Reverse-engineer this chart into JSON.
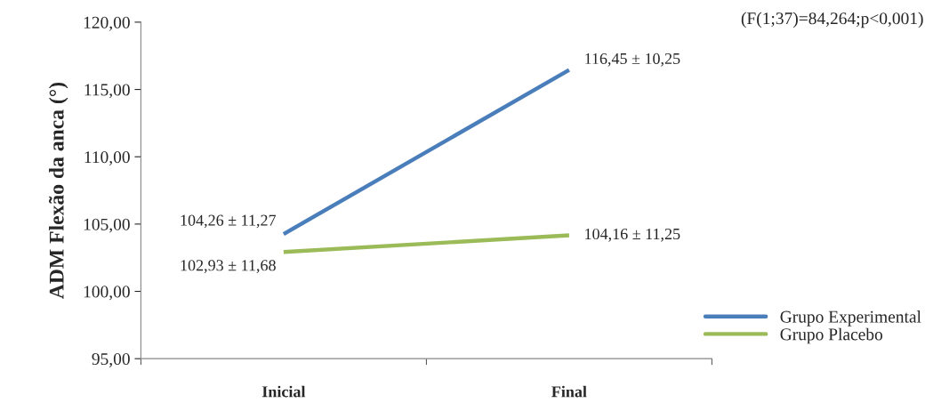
{
  "chart_data": {
    "type": "line",
    "ylabel": "ADM Flexão da anca (°)",
    "categories": [
      "Inicial",
      "Final"
    ],
    "series": [
      {
        "name": "Grupo Experimental",
        "color": "#4a7ebb",
        "values": [
          104.26,
          116.45
        ],
        "value_labels": [
          "104,26 ± 11,27",
          "116,45 ± 10,25"
        ]
      },
      {
        "name": "Grupo Placebo",
        "color": "#9bbb59",
        "values": [
          102.93,
          104.16
        ],
        "value_labels": [
          "102,93 ± 11,68",
          "104,16 ± 11,25"
        ]
      }
    ],
    "ylim": [
      95,
      120
    ],
    "yticks": [
      {
        "value": 95,
        "label": "95,00"
      },
      {
        "value": 100,
        "label": "100,00"
      },
      {
        "value": 105,
        "label": "105,00"
      },
      {
        "value": 110,
        "label": "110,00"
      },
      {
        "value": 115,
        "label": "115,00"
      },
      {
        "value": 120,
        "label": "120,00"
      }
    ],
    "annotations": [
      "(F(1;37)=84,264;p<0,001)"
    ],
    "legend": "bottom right",
    "grid": false,
    "marker": "none",
    "line_style": "solid"
  }
}
